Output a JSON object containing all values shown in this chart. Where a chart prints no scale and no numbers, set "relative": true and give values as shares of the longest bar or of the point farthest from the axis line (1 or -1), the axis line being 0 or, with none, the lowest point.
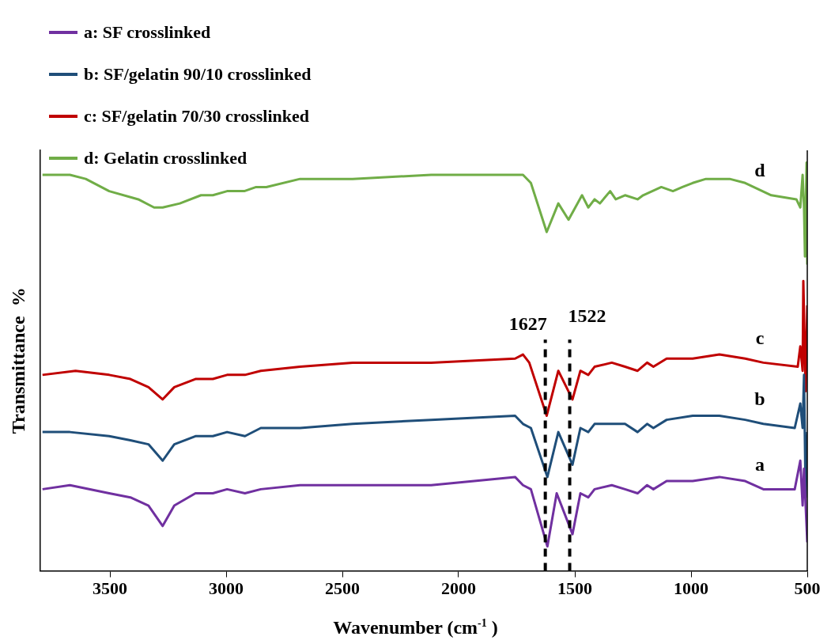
{
  "chart_data": {
    "type": "line",
    "relative": true,
    "xlabel": "Wavenumber (cm$^{-1}$ )",
    "ylabel": "Transmittance  %",
    "xlim": [
      3800,
      500
    ],
    "xticks": [
      3500,
      3000,
      2500,
      2000,
      1500,
      1000,
      500
    ],
    "grid": false,
    "legend": "top left",
    "series": [
      {
        "name": "a: SF crosslinked",
        "color": "#7030a0",
        "x": [
          3790,
          3672,
          3503,
          3412,
          3334,
          3273,
          3223,
          3132,
          3057,
          2996,
          2919,
          2851,
          2682,
          2456,
          2118,
          1757,
          1723,
          1689,
          1618,
          1578,
          1510,
          1476,
          1442,
          1415,
          1341,
          1284,
          1230,
          1189,
          1162,
          1105,
          993,
          878,
          767,
          689,
          554,
          530,
          520,
          514,
          500
        ],
        "values": [
          0.2,
          0.21,
          0.19,
          0.18,
          0.16,
          0.11,
          0.16,
          0.19,
          0.19,
          0.2,
          0.19,
          0.2,
          0.21,
          0.21,
          0.21,
          0.23,
          0.21,
          0.2,
          0.06,
          0.19,
          0.09,
          0.19,
          0.18,
          0.2,
          0.21,
          0.2,
          0.19,
          0.21,
          0.2,
          0.22,
          0.22,
          0.23,
          0.22,
          0.2,
          0.2,
          0.27,
          0.16,
          0.25,
          0.07
        ]
      },
      {
        "name": "b: SF/gelatin 90/10 crosslinked",
        "color": "#1f4e79",
        "x": [
          3790,
          3672,
          3503,
          3412,
          3334,
          3273,
          3223,
          3132,
          3057,
          2996,
          2919,
          2851,
          2682,
          2456,
          2118,
          1757,
          1723,
          1689,
          1618,
          1571,
          1510,
          1476,
          1442,
          1415,
          1341,
          1284,
          1230,
          1189,
          1162,
          1105,
          993,
          878,
          767,
          689,
          554,
          530,
          520,
          514,
          507,
          500
        ],
        "values": [
          0.34,
          0.34,
          0.33,
          0.32,
          0.31,
          0.27,
          0.31,
          0.33,
          0.33,
          0.34,
          0.33,
          0.35,
          0.35,
          0.36,
          0.37,
          0.38,
          0.36,
          0.35,
          0.23,
          0.34,
          0.26,
          0.35,
          0.34,
          0.36,
          0.36,
          0.36,
          0.34,
          0.36,
          0.35,
          0.37,
          0.38,
          0.38,
          0.37,
          0.36,
          0.35,
          0.41,
          0.35,
          0.48,
          0.18,
          0.34
        ]
      },
      {
        "name": "c: SF/gelatin 70/30 crosslinked",
        "color": "#c00000",
        "x": [
          3790,
          3648,
          3503,
          3412,
          3334,
          3273,
          3223,
          3132,
          3057,
          2996,
          2919,
          2851,
          2682,
          2456,
          2118,
          1757,
          1723,
          1696,
          1621,
          1571,
          1510,
          1476,
          1442,
          1415,
          1341,
          1284,
          1230,
          1189,
          1162,
          1105,
          993,
          878,
          767,
          689,
          541,
          530,
          520,
          517,
          507,
          500
        ],
        "values": [
          0.48,
          0.49,
          0.48,
          0.47,
          0.45,
          0.42,
          0.45,
          0.47,
          0.47,
          0.48,
          0.48,
          0.49,
          0.5,
          0.51,
          0.51,
          0.52,
          0.53,
          0.51,
          0.38,
          0.49,
          0.42,
          0.49,
          0.48,
          0.5,
          0.51,
          0.5,
          0.49,
          0.51,
          0.5,
          0.52,
          0.52,
          0.53,
          0.52,
          0.51,
          0.5,
          0.55,
          0.49,
          0.71,
          0.44,
          0.65
        ]
      },
      {
        "name": "d: Gelatin crosslinked",
        "color": "#70ad47",
        "x": [
          3790,
          3672,
          3604,
          3503,
          3378,
          3310,
          3273,
          3199,
          3108,
          3057,
          2996,
          2922,
          2871,
          2827,
          2682,
          2456,
          2118,
          1780,
          1723,
          1689,
          1621,
          1571,
          1527,
          1469,
          1442,
          1415,
          1392,
          1348,
          1324,
          1284,
          1230,
          1206,
          1128,
          1078,
          1037,
          993,
          936,
          834,
          767,
          655,
          547,
          530,
          520,
          514,
          510,
          503,
          500
        ],
        "values": [
          0.97,
          0.97,
          0.96,
          0.93,
          0.91,
          0.89,
          0.89,
          0.9,
          0.92,
          0.92,
          0.93,
          0.93,
          0.94,
          0.94,
          0.96,
          0.96,
          0.97,
          0.97,
          0.97,
          0.95,
          0.83,
          0.9,
          0.86,
          0.92,
          0.89,
          0.91,
          0.9,
          0.93,
          0.91,
          0.92,
          0.91,
          0.92,
          0.94,
          0.93,
          0.94,
          0.95,
          0.96,
          0.96,
          0.95,
          0.92,
          0.91,
          0.89,
          0.97,
          0.89,
          0.77,
          1.0,
          0.75
        ]
      }
    ],
    "ref_lines": [
      {
        "axis": "x",
        "value": 1627,
        "label": "1627",
        "color": "#000000",
        "line_style": "dashed"
      },
      {
        "axis": "x",
        "value": 1522,
        "label": "1522",
        "color": "#000000",
        "line_style": "dashed"
      }
    ],
    "annotations": [
      "a",
      "b",
      "c",
      "d"
    ]
  }
}
